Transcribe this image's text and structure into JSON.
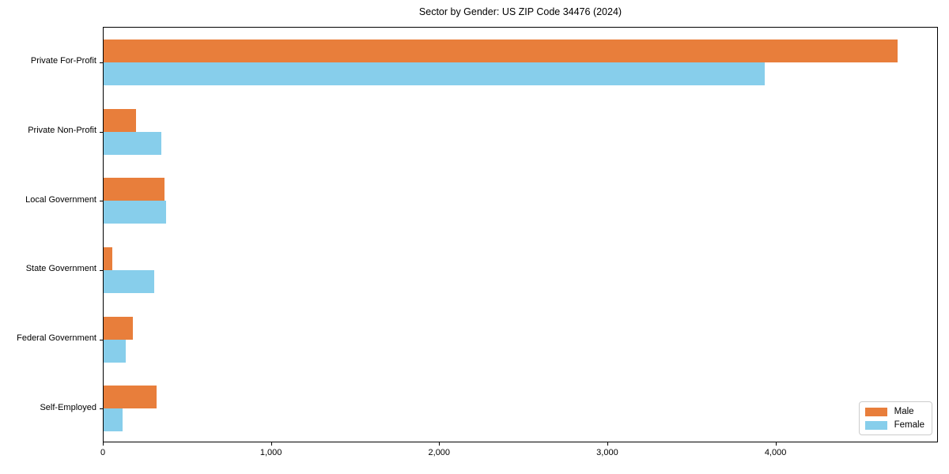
{
  "chart_data": {
    "type": "bar",
    "orientation": "horizontal",
    "title": "Sector by Gender: US ZIP Code 34476 (2024)",
    "categories": [
      "Private For-Profit",
      "Private Non-Profit",
      "Local Government",
      "State Government",
      "Federal Government",
      "Self-Employed"
    ],
    "series": [
      {
        "name": "Male",
        "color": "#e87e3b",
        "values": [
          4730,
          195,
          365,
          54,
          176,
          318
        ]
      },
      {
        "name": "Female",
        "color": "#87ceeb",
        "values": [
          3940,
          346,
          374,
          303,
          134,
          115
        ]
      }
    ],
    "xlabel": "",
    "ylabel": "",
    "xlim": [
      0,
      4966
    ],
    "xticks": {
      "values": [
        0,
        1000,
        2000,
        3000,
        4000
      ],
      "labels": [
        "0",
        "1,000",
        "2,000",
        "3,000",
        "4,000"
      ]
    },
    "grid": false,
    "legend_position": "lower right",
    "background": "#ffffff",
    "spine_color": "#000000"
  }
}
